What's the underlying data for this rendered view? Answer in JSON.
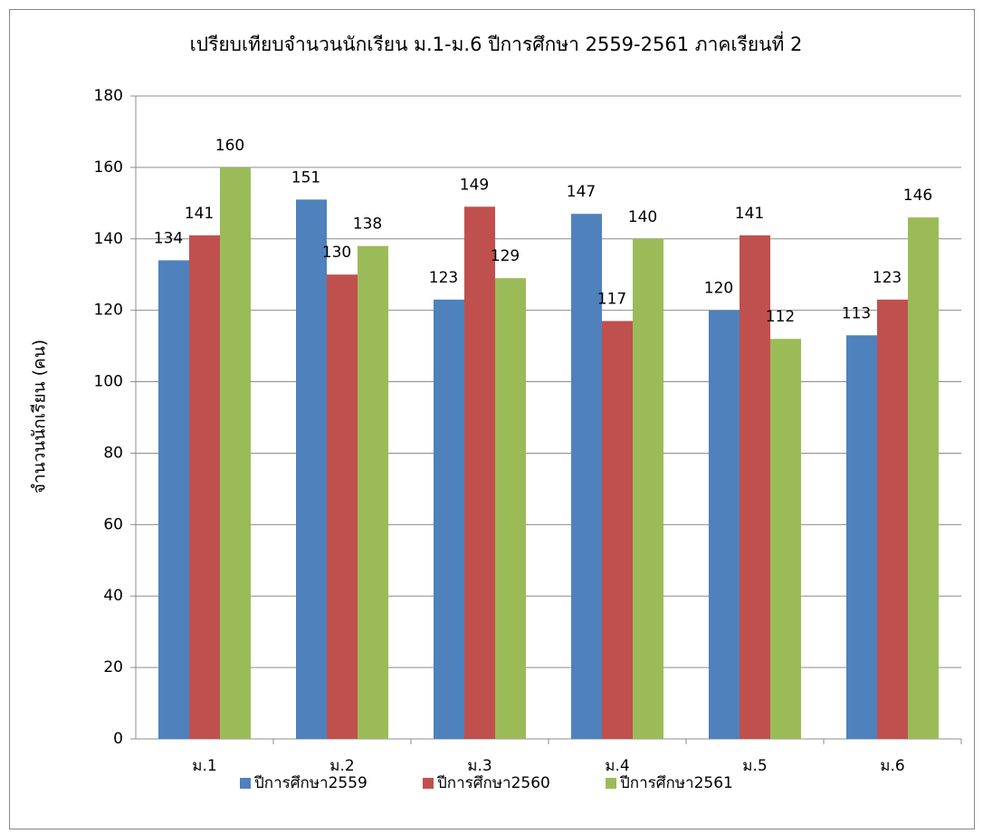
{
  "chart_data": {
    "type": "bar",
    "title": "เปรียบเทียบจำนวนนักเรียน ม.1-ม.6  ปีการศึกษา 2559-2561  ภาคเรียนที่ 2",
    "y_label": "จำนวนนักเรียน (คน)",
    "categories": [
      "ม.1",
      "ม.2",
      "ม.3",
      "ม.4",
      "ม.5",
      "ม.6"
    ],
    "series": [
      {
        "name": "ปีการศึกษา2559",
        "color": "#4f81bd",
        "values": [
          134,
          151,
          123,
          147,
          120,
          113
        ]
      },
      {
        "name": "ปีการศึกษา2560",
        "color": "#c0504d",
        "values": [
          141,
          130,
          149,
          117,
          141,
          123
        ]
      },
      {
        "name": "ปีการศึกษา2561",
        "color": "#9bbb59",
        "values": [
          160,
          138,
          129,
          140,
          112,
          146
        ]
      }
    ],
    "ylim": [
      0,
      180
    ],
    "yticks": [
      0,
      20,
      40,
      60,
      80,
      100,
      120,
      140,
      160,
      180
    ],
    "grid": true,
    "legend": "bottom"
  }
}
